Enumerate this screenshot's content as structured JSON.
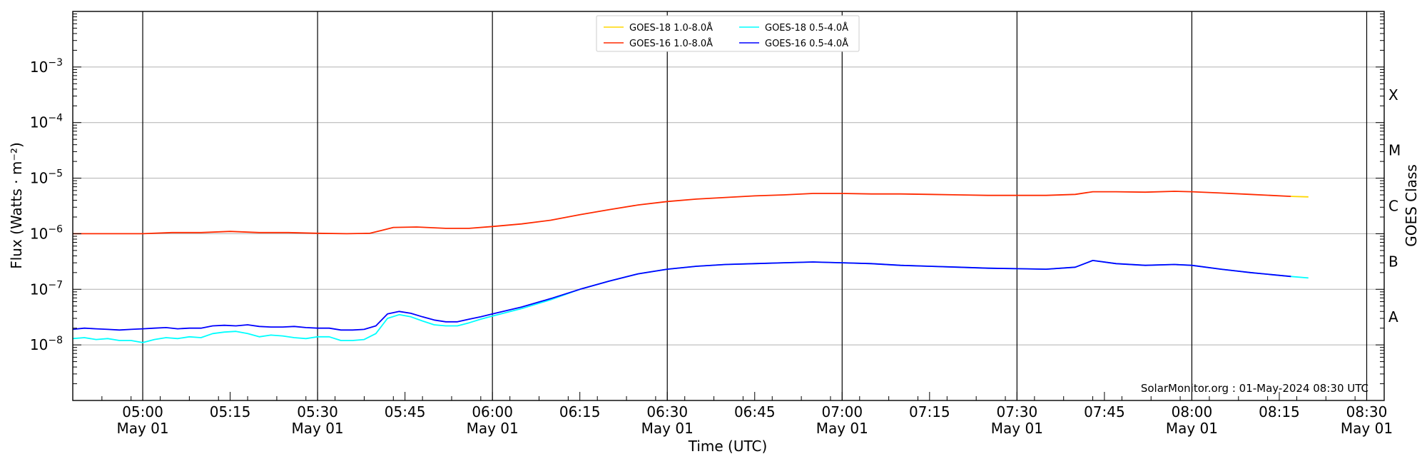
{
  "chart_data": {
    "type": "line",
    "xlabel": "Time (UTC)",
    "ylabel": "Flux (Watts · m⁻²)",
    "y2label": "GOES Class",
    "yscale": "log",
    "ylim": [
      1e-09,
      0.01
    ],
    "xlim": [
      "04:48",
      "08:33"
    ],
    "credit": "SolarMonitor.org : 01-May-2024 08:30 UTC",
    "grid": "horizontal at decades, vertical at half hours",
    "legend_position": "top-center",
    "yticks": [
      {
        "value": 1e-08,
        "base": "10",
        "exp": "−8"
      },
      {
        "value": 1e-07,
        "base": "10",
        "exp": "−7"
      },
      {
        "value": 1e-06,
        "base": "10",
        "exp": "−6"
      },
      {
        "value": 1e-05,
        "base": "10",
        "exp": "−5"
      },
      {
        "value": 0.0001,
        "base": "10",
        "exp": "−4"
      },
      {
        "value": 0.001,
        "base": "10",
        "exp": "−3"
      }
    ],
    "xticks": [
      {
        "time": "05:00",
        "date": "May 01"
      },
      {
        "time": "05:15",
        "date": ""
      },
      {
        "time": "05:30",
        "date": "May 01"
      },
      {
        "time": "05:45",
        "date": ""
      },
      {
        "time": "06:00",
        "date": "May 01"
      },
      {
        "time": "06:15",
        "date": ""
      },
      {
        "time": "06:30",
        "date": "May 01"
      },
      {
        "time": "06:45",
        "date": ""
      },
      {
        "time": "07:00",
        "date": "May 01"
      },
      {
        "time": "07:15",
        "date": ""
      },
      {
        "time": "07:30",
        "date": "May 01"
      },
      {
        "time": "07:45",
        "date": ""
      },
      {
        "time": "08:00",
        "date": "May 01"
      },
      {
        "time": "08:15",
        "date": ""
      },
      {
        "time": "08:30",
        "date": "May 01"
      }
    ],
    "goes_classes": [
      {
        "label": "X",
        "value": 0.000316
      },
      {
        "label": "M",
        "value": 3.16e-05
      },
      {
        "label": "C",
        "value": 3.16e-06
      },
      {
        "label": "B",
        "value": 3.16e-07
      },
      {
        "label": "A",
        "value": 3.16e-08
      }
    ],
    "legend": [
      {
        "label": "GOES-18 1.0-8.0Å",
        "color": "#ffd700"
      },
      {
        "label": "GOES-18 0.5-4.0Å",
        "color": "#00ffff"
      },
      {
        "label": "GOES-16 1.0-8.0Å",
        "color": "#ff2a00"
      },
      {
        "label": "GOES-16 0.5-4.0Å",
        "color": "#0000ff"
      }
    ],
    "series": [
      {
        "name": "GOES-16 1.0-8.0Å",
        "color": "#ff2a00",
        "points": [
          [
            "04:48",
            1e-06
          ],
          [
            "05:00",
            1e-06
          ],
          [
            "05:05",
            1.05e-06
          ],
          [
            "05:10",
            1.05e-06
          ],
          [
            "05:15",
            1.1e-06
          ],
          [
            "05:20",
            1.05e-06
          ],
          [
            "05:25",
            1.05e-06
          ],
          [
            "05:30",
            1.02e-06
          ],
          [
            "05:35",
            1e-06
          ],
          [
            "05:39",
            1.02e-06
          ],
          [
            "05:41",
            1.15e-06
          ],
          [
            "05:43",
            1.3e-06
          ],
          [
            "05:47",
            1.32e-06
          ],
          [
            "05:52",
            1.25e-06
          ],
          [
            "05:56",
            1.25e-06
          ],
          [
            "06:00",
            1.35e-06
          ],
          [
            "06:05",
            1.5e-06
          ],
          [
            "06:10",
            1.75e-06
          ],
          [
            "06:15",
            2.2e-06
          ],
          [
            "06:20",
            2.7e-06
          ],
          [
            "06:25",
            3.3e-06
          ],
          [
            "06:30",
            3.8e-06
          ],
          [
            "06:35",
            4.2e-06
          ],
          [
            "06:40",
            4.5e-06
          ],
          [
            "06:45",
            4.8e-06
          ],
          [
            "06:50",
            5e-06
          ],
          [
            "06:55",
            5.3e-06
          ],
          [
            "07:00",
            5.3e-06
          ],
          [
            "07:05",
            5.2e-06
          ],
          [
            "07:10",
            5.2e-06
          ],
          [
            "07:15",
            5.1e-06
          ],
          [
            "07:20",
            5e-06
          ],
          [
            "07:25",
            4.9e-06
          ],
          [
            "07:30",
            4.9e-06
          ],
          [
            "07:35",
            4.9e-06
          ],
          [
            "07:40",
            5.1e-06
          ],
          [
            "07:43",
            5.7e-06
          ],
          [
            "07:47",
            5.7e-06
          ],
          [
            "07:52",
            5.6e-06
          ],
          [
            "07:57",
            5.8e-06
          ],
          [
            "08:00",
            5.7e-06
          ],
          [
            "08:05",
            5.4e-06
          ],
          [
            "08:10",
            5.1e-06
          ],
          [
            "08:17",
            4.7e-06
          ]
        ]
      },
      {
        "name": "GOES-18 1.0-8.0Å",
        "color": "#ffd700",
        "points": [
          [
            "08:17",
            4.7e-06
          ],
          [
            "08:20",
            4.6e-06
          ]
        ]
      },
      {
        "name": "GOES-18 0.5-4.0Å",
        "color": "#00ffff",
        "points": [
          [
            "04:48",
            1.3e-08
          ],
          [
            "04:50",
            1.35e-08
          ],
          [
            "04:52",
            1.25e-08
          ],
          [
            "04:54",
            1.3e-08
          ],
          [
            "04:56",
            1.2e-08
          ],
          [
            "04:58",
            1.2e-08
          ],
          [
            "05:00",
            1.1e-08
          ],
          [
            "05:02",
            1.25e-08
          ],
          [
            "05:04",
            1.35e-08
          ],
          [
            "05:06",
            1.3e-08
          ],
          [
            "05:08",
            1.4e-08
          ],
          [
            "05:10",
            1.35e-08
          ],
          [
            "05:12",
            1.6e-08
          ],
          [
            "05:14",
            1.7e-08
          ],
          [
            "05:16",
            1.75e-08
          ],
          [
            "05:18",
            1.6e-08
          ],
          [
            "05:20",
            1.4e-08
          ],
          [
            "05:22",
            1.5e-08
          ],
          [
            "05:24",
            1.45e-08
          ],
          [
            "05:26",
            1.35e-08
          ],
          [
            "05:28",
            1.3e-08
          ],
          [
            "05:30",
            1.4e-08
          ],
          [
            "05:32",
            1.4e-08
          ],
          [
            "05:34",
            1.2e-08
          ],
          [
            "05:36",
            1.2e-08
          ],
          [
            "05:38",
            1.25e-08
          ],
          [
            "05:40",
            1.6e-08
          ],
          [
            "05:42",
            3e-08
          ],
          [
            "05:44",
            3.5e-08
          ],
          [
            "05:46",
            3.2e-08
          ],
          [
            "05:48",
            2.7e-08
          ],
          [
            "05:50",
            2.3e-08
          ],
          [
            "05:52",
            2.2e-08
          ],
          [
            "05:54",
            2.2e-08
          ],
          [
            "05:56",
            2.5e-08
          ],
          [
            "05:58",
            2.9e-08
          ],
          [
            "06:00",
            3.3e-08
          ],
          [
            "06:05",
            4.5e-08
          ],
          [
            "06:10",
            6.5e-08
          ],
          [
            "06:15",
            1e-07
          ],
          [
            "06:20",
            1.4e-07
          ],
          [
            "06:25",
            1.9e-07
          ],
          [
            "06:30",
            2.3e-07
          ],
          [
            "06:35",
            2.6e-07
          ],
          [
            "06:40",
            2.8e-07
          ],
          [
            "06:45",
            2.9e-07
          ],
          [
            "06:50",
            3e-07
          ],
          [
            "06:55",
            3.1e-07
          ],
          [
            "07:00",
            3e-07
          ],
          [
            "07:05",
            2.9e-07
          ],
          [
            "07:10",
            2.7e-07
          ],
          [
            "07:15",
            2.6e-07
          ],
          [
            "07:20",
            2.5e-07
          ],
          [
            "07:25",
            2.4e-07
          ],
          [
            "07:30",
            2.35e-07
          ],
          [
            "07:35",
            2.3e-07
          ],
          [
            "07:40",
            2.5e-07
          ],
          [
            "07:43",
            3.3e-07
          ],
          [
            "07:47",
            2.9e-07
          ],
          [
            "07:52",
            2.7e-07
          ],
          [
            "07:57",
            2.8e-07
          ],
          [
            "08:00",
            2.7e-07
          ],
          [
            "08:05",
            2.3e-07
          ],
          [
            "08:10",
            2e-07
          ],
          [
            "08:17",
            1.7e-07
          ],
          [
            "08:20",
            1.6e-07
          ]
        ]
      },
      {
        "name": "GOES-16 0.5-4.0Å",
        "color": "#0000ff",
        "points": [
          [
            "04:48",
            1.9e-08
          ],
          [
            "04:50",
            2e-08
          ],
          [
            "04:52",
            1.95e-08
          ],
          [
            "04:54",
            1.9e-08
          ],
          [
            "04:56",
            1.85e-08
          ],
          [
            "04:58",
            1.9e-08
          ],
          [
            "05:00",
            1.95e-08
          ],
          [
            "05:02",
            2e-08
          ],
          [
            "05:04",
            2.05e-08
          ],
          [
            "05:06",
            1.95e-08
          ],
          [
            "05:08",
            2e-08
          ],
          [
            "05:10",
            2e-08
          ],
          [
            "05:12",
            2.2e-08
          ],
          [
            "05:14",
            2.25e-08
          ],
          [
            "05:16",
            2.2e-08
          ],
          [
            "05:18",
            2.3e-08
          ],
          [
            "05:20",
            2.15e-08
          ],
          [
            "05:22",
            2.1e-08
          ],
          [
            "05:24",
            2.1e-08
          ],
          [
            "05:26",
            2.15e-08
          ],
          [
            "05:28",
            2.05e-08
          ],
          [
            "05:30",
            2e-08
          ],
          [
            "05:32",
            2e-08
          ],
          [
            "05:34",
            1.85e-08
          ],
          [
            "05:36",
            1.85e-08
          ],
          [
            "05:38",
            1.9e-08
          ],
          [
            "05:40",
            2.2e-08
          ],
          [
            "05:42",
            3.6e-08
          ],
          [
            "05:44",
            4e-08
          ],
          [
            "05:46",
            3.7e-08
          ],
          [
            "05:48",
            3.2e-08
          ],
          [
            "05:50",
            2.8e-08
          ],
          [
            "05:52",
            2.6e-08
          ],
          [
            "05:54",
            2.6e-08
          ],
          [
            "05:56",
            2.9e-08
          ],
          [
            "05:58",
            3.2e-08
          ],
          [
            "06:00",
            3.6e-08
          ],
          [
            "06:05",
            4.8e-08
          ],
          [
            "06:10",
            6.8e-08
          ],
          [
            "06:15",
            1e-07
          ],
          [
            "06:20",
            1.4e-07
          ],
          [
            "06:25",
            1.9e-07
          ],
          [
            "06:30",
            2.3e-07
          ],
          [
            "06:35",
            2.6e-07
          ],
          [
            "06:40",
            2.8e-07
          ],
          [
            "06:45",
            2.9e-07
          ],
          [
            "06:50",
            3e-07
          ],
          [
            "06:55",
            3.1e-07
          ],
          [
            "07:00",
            3e-07
          ],
          [
            "07:05",
            2.9e-07
          ],
          [
            "07:10",
            2.7e-07
          ],
          [
            "07:15",
            2.6e-07
          ],
          [
            "07:20",
            2.5e-07
          ],
          [
            "07:25",
            2.4e-07
          ],
          [
            "07:30",
            2.35e-07
          ],
          [
            "07:35",
            2.3e-07
          ],
          [
            "07:40",
            2.5e-07
          ],
          [
            "07:43",
            3.3e-07
          ],
          [
            "07:47",
            2.9e-07
          ],
          [
            "07:52",
            2.7e-07
          ],
          [
            "07:57",
            2.8e-07
          ],
          [
            "08:00",
            2.7e-07
          ],
          [
            "08:05",
            2.3e-07
          ],
          [
            "08:10",
            2e-07
          ],
          [
            "08:17",
            1.7e-07
          ]
        ]
      }
    ]
  }
}
